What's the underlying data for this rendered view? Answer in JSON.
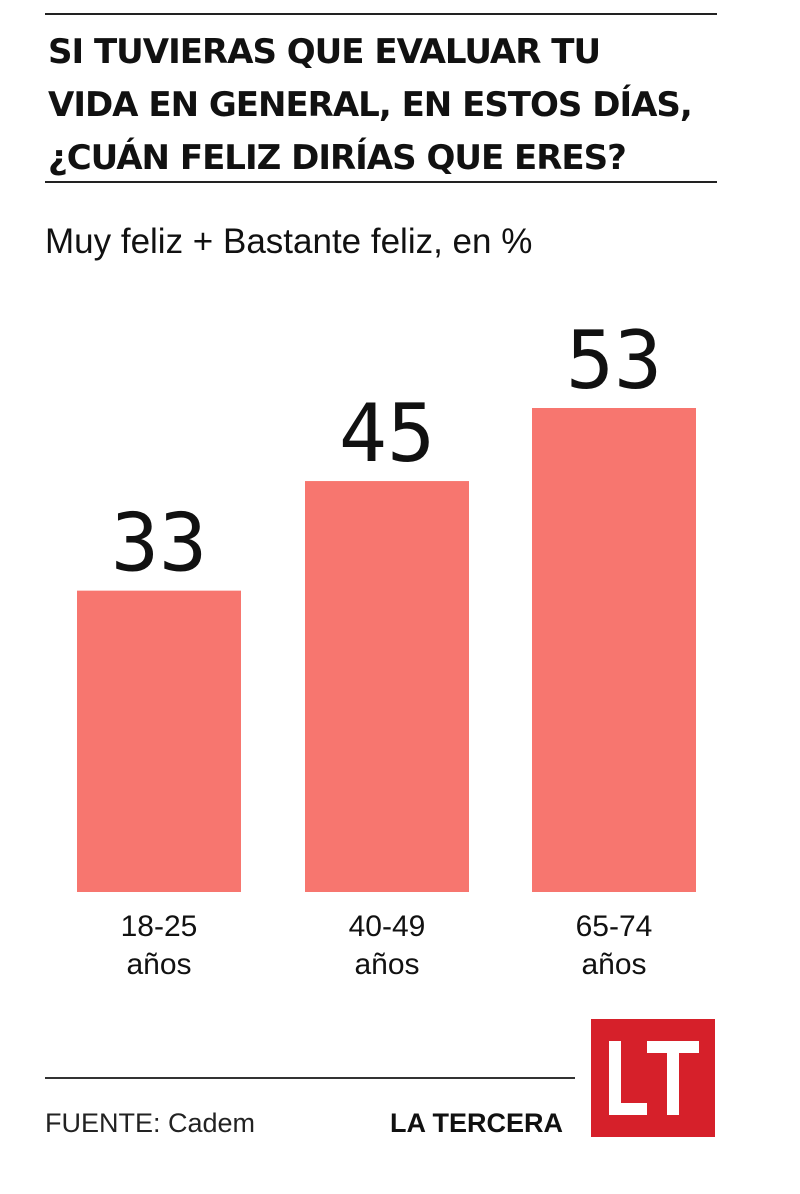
{
  "title_lines": [
    "SI TUVIERAS QUE EVALUAR TU",
    "VIDA EN GENERAL,  EN ESTOS DÍAS,",
    " ¿CUÁN FELIZ DIRÍAS QUE ERES?"
  ],
  "subtitle": "Muy feliz + Bastante feliz, en %",
  "chart_data": {
    "type": "bar",
    "title": "SI TUVIERAS QUE EVALUAR TU VIDA EN GENERAL,  EN ESTOS DÍAS, ¿CUÁN FELIZ DIRÍAS QUE ERES?",
    "subtitle": "Muy feliz + Bastante feliz, en %",
    "categories": [
      [
        "18-25",
        "años"
      ],
      [
        "40-49",
        "años"
      ],
      [
        "65-74",
        "años"
      ]
    ],
    "values": [
      33,
      45,
      53
    ],
    "xlabel": "",
    "ylabel": "",
    "ylim": [
      0,
      53
    ],
    "grid": false,
    "legend": "none",
    "bar_color": "#f7766f",
    "label_color": "#111111"
  },
  "footer": {
    "source": "FUENTE: Cadem",
    "brand": "LA TERCERA",
    "logo_text": "LT",
    "logo_color": "#d6202a"
  }
}
